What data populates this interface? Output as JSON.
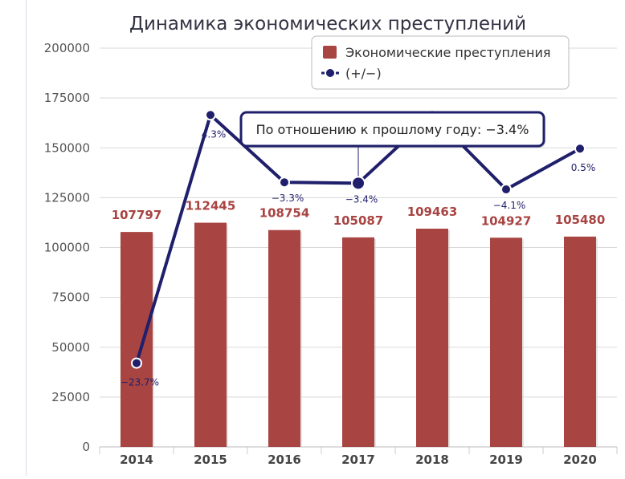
{
  "chart_data": {
    "type": "bar",
    "title": "Динамика экономических преступлений",
    "categories": [
      "2014",
      "2015",
      "2016",
      "2017",
      "2018",
      "2019",
      "2020"
    ],
    "series": [
      {
        "name": "Экономические преступления",
        "type": "bar",
        "color": "#a84442",
        "values": [
          107797,
          112445,
          108754,
          105087,
          109463,
          104927,
          105480
        ],
        "value_labels": [
          "107797",
          "112445",
          "108754",
          "105087",
          "109463",
          "104927",
          "105480"
        ]
      },
      {
        "name": "(+/−)",
        "type": "line",
        "color": "#1f1f6b",
        "values": [
          -23.7,
          4.3,
          -3.3,
          -3.4,
          4.3,
          -4.1,
          0.5
        ],
        "value_labels": [
          "−23.7%",
          "4.3%",
          "−3.3%",
          "−3.4%",
          "",
          "−4.1%",
          "0.5%"
        ]
      }
    ],
    "y_axis": {
      "ticks": [
        "0",
        "25000",
        "50000",
        "75000",
        "100000",
        "125000",
        "150000",
        "175000",
        "200000"
      ],
      "ylim": [
        0,
        200000
      ]
    },
    "legend": {
      "position": "top-right"
    },
    "tooltip": {
      "text": "По отношению к прошлому году: −3.4%",
      "category": "2017"
    },
    "grid": true,
    "colors": {
      "bar": "#a84442",
      "line": "#1f1f6b",
      "axis_text": "#555555",
      "year_text": "#444444"
    }
  }
}
